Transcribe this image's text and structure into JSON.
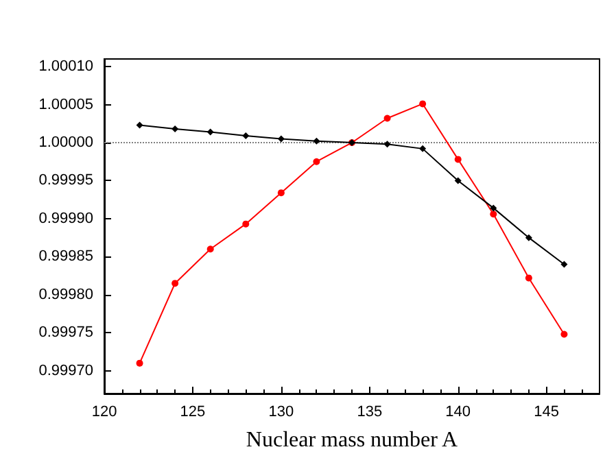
{
  "chart_data": {
    "type": "line",
    "xlabel": "Nuclear mass number A",
    "x": [
      122,
      124,
      126,
      128,
      130,
      132,
      134,
      136,
      138,
      140,
      142,
      144,
      146
    ],
    "series": [
      {
        "color": "#000000",
        "marker": "diamond",
        "values": [
          1.000023,
          1.000018,
          1.000014,
          1.000009,
          1.000005,
          1.000002,
          1.0,
          0.999998,
          0.999992,
          0.99995,
          0.999914,
          0.999875,
          0.99984
        ]
      },
      {
        "color": "#ff0000",
        "marker": "circle",
        "values": [
          0.99971,
          0.999815,
          0.99986,
          0.999893,
          0.999934,
          0.999975,
          1.0,
          1.000032,
          1.000051,
          0.999978,
          0.999906,
          0.999822,
          0.999748
        ]
      }
    ],
    "xlim": [
      120,
      148
    ],
    "xticks": [
      120,
      125,
      130,
      135,
      140,
      145
    ],
    "ylim": [
      0.99967,
      1.00011
    ],
    "yticks": [
      {
        "value": 0.9997,
        "label": "0.99970"
      },
      {
        "value": 0.99975,
        "label": "0.99975"
      },
      {
        "value": 0.9998,
        "label": "0.99980"
      },
      {
        "value": 0.99985,
        "label": "0.99985"
      },
      {
        "value": 0.9999,
        "label": "0.99990"
      },
      {
        "value": 0.99995,
        "label": "0.99995"
      },
      {
        "value": 1.0,
        "label": "1.00000"
      },
      {
        "value": 1.00005,
        "label": "1.00005"
      },
      {
        "value": 1.0001,
        "label": "1.00010"
      }
    ],
    "ref_lines": [
      {
        "axis": "y",
        "value": 1.0,
        "color": "#808080",
        "line_style": "dotted"
      }
    ],
    "grid": false,
    "line_style": "solid"
  }
}
